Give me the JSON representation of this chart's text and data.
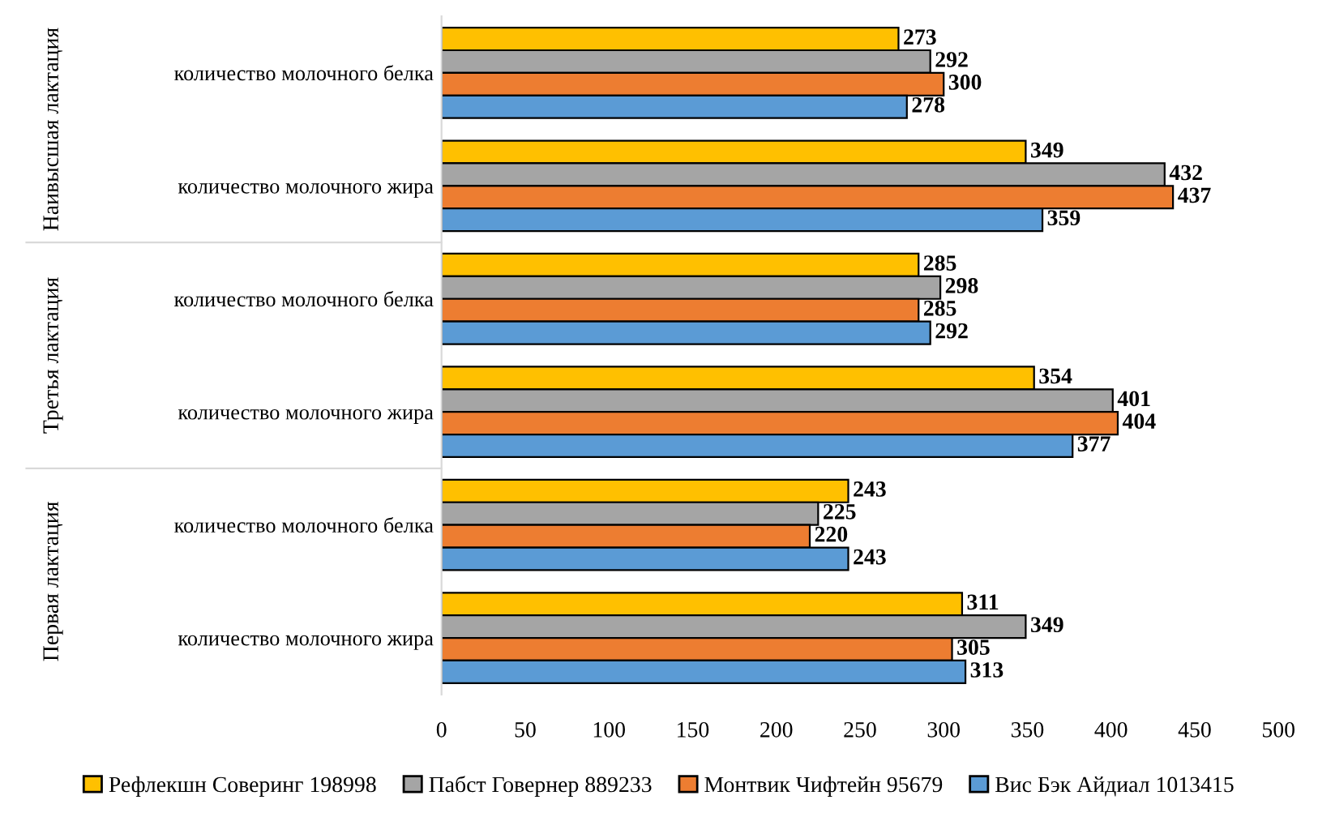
{
  "chart_data": {
    "type": "bar",
    "orientation": "horizontal",
    "categories": [
      "количество молочного белка",
      "количество молочного жира",
      "количество молочного белка",
      "количество молочного жира",
      "количество молочного белка",
      "количество молочного жира"
    ],
    "series": [
      {
        "name": "Рефлекшн Соверинг 198998",
        "color": "#ffc000",
        "values": [
          273,
          349,
          285,
          354,
          243,
          311
        ]
      },
      {
        "name": "Пабст Говернер 889233",
        "color": "#a5a5a5",
        "values": [
          292,
          432,
          298,
          401,
          225,
          349
        ]
      },
      {
        "name": "Монтвик Чифтейн 95679",
        "color": "#ed7d31",
        "values": [
          300,
          437,
          285,
          404,
          220,
          305
        ]
      },
      {
        "name": "Вис Бэк Айдиал 1013415",
        "color": "#5b9bd5",
        "values": [
          278,
          359,
          292,
          377,
          243,
          313
        ]
      }
    ],
    "annotations": [
      "Наивысшая лактация",
      "Третья лактация",
      "Первая лактация"
    ],
    "xlim": [
      0,
      500
    ],
    "xticks": [
      0,
      50,
      100,
      150,
      200,
      250,
      300,
      350,
      400,
      450,
      500
    ],
    "data_labels": true,
    "grid": false,
    "legend": "bottom"
  }
}
